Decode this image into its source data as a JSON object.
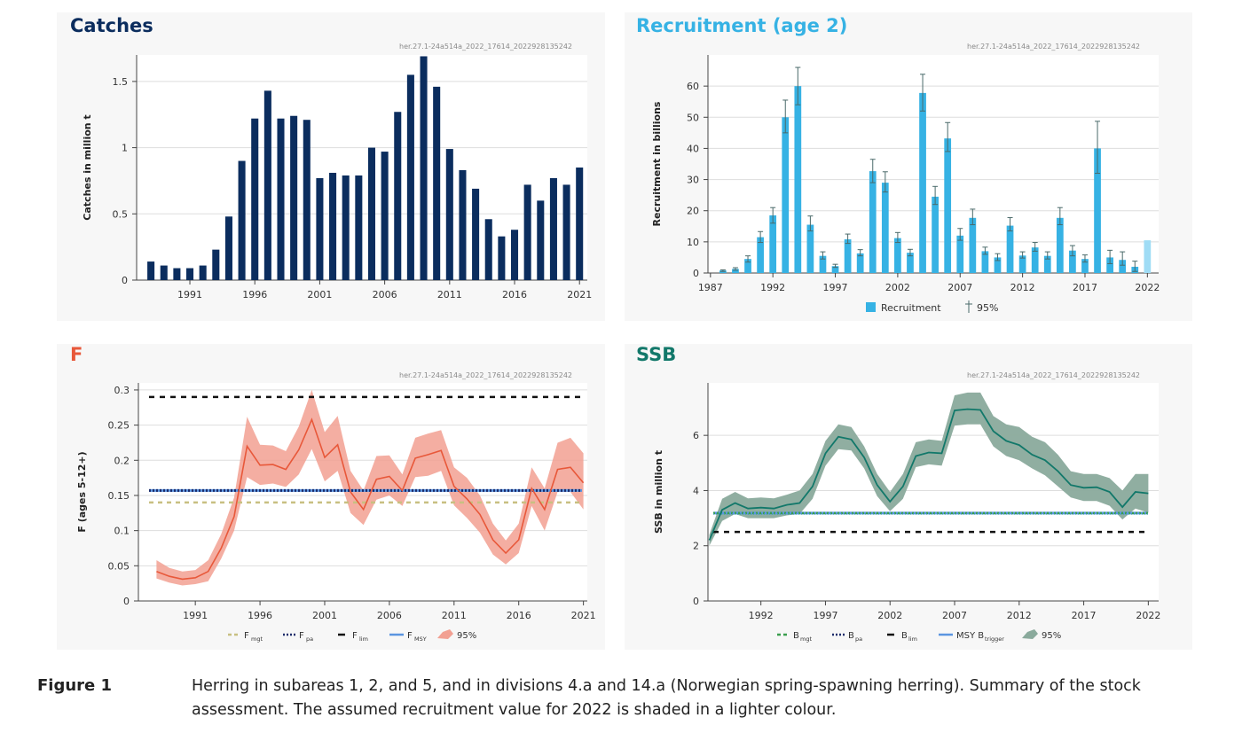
{
  "colors": {
    "catches": "#0b2d5e",
    "recruitment": "#36b2e4",
    "recruitment_assumed": "#9fdcf5",
    "f_line": "#e8583a",
    "f_band": "#f2a092",
    "ssb_line": "#12786a",
    "ssb_band": "#8aaa9c",
    "ref_mgt_f": "#c8c081",
    "ref_mgt_b": "#3a9e4e",
    "ref_pa": "#1d2d6b",
    "ref_lim": "#111111",
    "ref_msy": "#5b95e0",
    "catches_title": "#0b2d5e",
    "recruitment_title": "#36b2e4",
    "f_title": "#e8583a",
    "ssb_title": "#12786a"
  },
  "panels": {
    "catches": {
      "title": "Catches",
      "code": "her.27.1-24a514a_2022_17614_2022928135242",
      "ylabel": "Catches in million t"
    },
    "recruitment": {
      "title": "Recruitment (age 2)",
      "code": "her.27.1-24a514a_2022_17614_2022928135242",
      "ylabel": "Recruitment in billions",
      "legend_bar": "Recruitment",
      "legend_err": "95%"
    },
    "f": {
      "title": "F",
      "code": "her.27.1-24a514a_2022_17614_2022928135242",
      "ylabel": "F (ages 5-12+)",
      "legend": {
        "mgt": "F",
        "mgt_sub": "mgt",
        "pa": "F",
        "pa_sub": "pa",
        "lim": "F",
        "lim_sub": "lim",
        "msy": "F",
        "msy_sub": "MSY",
        "band": "95%"
      }
    },
    "ssb": {
      "title": "SSB",
      "code": "her.27.1-24a514a_2022_17614_2022928135242",
      "ylabel": "SSB in million t",
      "legend": {
        "mgt": "B",
        "mgt_sub": "mgt",
        "pa": "B",
        "pa_sub": "pa",
        "lim": "B",
        "lim_sub": "lim",
        "msy": "MSY B",
        "msy_sub": "trigger",
        "band": "95%"
      }
    }
  },
  "caption": {
    "label": "Figure 1",
    "text": "Herring in subareas 1, 2, and 5, and in divisions 4.a and 14.a (Norwegian spring-spawning herring). Summary of the stock assessment. The assumed recruitment value for 2022 is shaded in a lighter colour."
  },
  "chart_data": [
    {
      "id": "catches",
      "type": "bar",
      "title": "Catches",
      "ylabel": "Catches in million t",
      "x": [
        1988,
        1989,
        1990,
        1991,
        1992,
        1993,
        1994,
        1995,
        1996,
        1997,
        1998,
        1999,
        2000,
        2001,
        2002,
        2003,
        2004,
        2005,
        2006,
        2007,
        2008,
        2009,
        2010,
        2011,
        2012,
        2013,
        2014,
        2015,
        2016,
        2017,
        2018,
        2019,
        2020,
        2021
      ],
      "values": [
        0.14,
        0.11,
        0.09,
        0.09,
        0.11,
        0.23,
        0.48,
        0.9,
        1.22,
        1.43,
        1.22,
        1.24,
        1.21,
        0.77,
        0.81,
        0.79,
        0.79,
        1.0,
        0.97,
        1.27,
        1.55,
        1.69,
        1.46,
        0.99,
        0.83,
        0.69,
        0.46,
        0.33,
        0.38,
        0.72,
        0.6,
        0.77,
        0.72,
        0.85
      ],
      "xticks": [
        "1991",
        "1996",
        "2001",
        "2006",
        "2011",
        "2016",
        "2021"
      ],
      "yticks": [
        "0",
        "0.5",
        "1",
        "1.5"
      ],
      "ylim": [
        0,
        1.7
      ]
    },
    {
      "id": "recruitment",
      "type": "bar",
      "title": "Recruitment (age 2)",
      "ylabel": "Recruitment in billions",
      "x": [
        1988,
        1989,
        1990,
        1991,
        1992,
        1993,
        1994,
        1995,
        1996,
        1997,
        1998,
        1999,
        2000,
        2001,
        2002,
        2003,
        2004,
        2005,
        2006,
        2007,
        2008,
        2009,
        2010,
        2011,
        2012,
        2013,
        2014,
        2015,
        2016,
        2017,
        2018,
        2019,
        2020,
        2021,
        2022
      ],
      "values": [
        0.8,
        1.3,
        4.5,
        11.5,
        18.5,
        50,
        60,
        15.5,
        5.5,
        2.2,
        10.8,
        6.3,
        32.7,
        29,
        11.2,
        6.5,
        57.8,
        24.5,
        43.2,
        12,
        17.7,
        7,
        5,
        15.2,
        5.6,
        8.2,
        5.5,
        17.7,
        7.2,
        4.5,
        40,
        5,
        4.2,
        2,
        10.5
      ],
      "lower": [
        0.5,
        0.9,
        3.5,
        9.8,
        16,
        45,
        54,
        13.5,
        4.5,
        1.8,
        9.5,
        5.5,
        29,
        26,
        9.8,
        5.5,
        52,
        22,
        39,
        10.5,
        15.5,
        6,
        4,
        13.5,
        4.8,
        7,
        4.5,
        15.5,
        5.5,
        3.5,
        32,
        3,
        2.5,
        0.5,
        null
      ],
      "upper": [
        1.0,
        1.7,
        5.5,
        13.3,
        21,
        55.5,
        66,
        18.3,
        6.8,
        2.8,
        12.5,
        7.5,
        36.5,
        32.5,
        13,
        7.6,
        63.8,
        27.8,
        48.3,
        14.3,
        20.5,
        8.3,
        6.2,
        17.8,
        6.8,
        9.8,
        6.8,
        21,
        8.8,
        5.8,
        48.7,
        7.3,
        6.8,
        3.8,
        null
      ],
      "assumed_x": 2022,
      "xticks": [
        "1987",
        "1992",
        "1997",
        "2002",
        "2007",
        "2012",
        "2017",
        "2022"
      ],
      "yticks": [
        "0",
        "10",
        "20",
        "30",
        "40",
        "50",
        "60"
      ],
      "ylim": [
        0,
        70
      ],
      "legend": [
        "Recruitment",
        "95%"
      ]
    },
    {
      "id": "f",
      "type": "line",
      "title": "F",
      "ylabel": "F (ages 5-12+)",
      "x": [
        1988,
        1989,
        1990,
        1991,
        1992,
        1993,
        1994,
        1995,
        1996,
        1997,
        1998,
        1999,
        2000,
        2001,
        2002,
        2003,
        2004,
        2005,
        2006,
        2007,
        2008,
        2009,
        2010,
        2011,
        2012,
        2013,
        2014,
        2015,
        2016,
        2017,
        2018,
        2019,
        2020,
        2021
      ],
      "y": [
        0.042,
        0.035,
        0.031,
        0.033,
        0.042,
        0.075,
        0.12,
        0.22,
        0.193,
        0.194,
        0.187,
        0.215,
        0.258,
        0.204,
        0.222,
        0.155,
        0.13,
        0.173,
        0.177,
        0.157,
        0.203,
        0.208,
        0.214,
        0.163,
        0.145,
        0.123,
        0.087,
        0.068,
        0.087,
        0.16,
        0.13,
        0.187,
        0.19,
        0.168
      ],
      "lower": [
        0.032,
        0.026,
        0.022,
        0.024,
        0.028,
        0.06,
        0.1,
        0.176,
        0.165,
        0.167,
        0.162,
        0.18,
        0.216,
        0.17,
        0.185,
        0.125,
        0.108,
        0.144,
        0.15,
        0.135,
        0.176,
        0.178,
        0.185,
        0.136,
        0.118,
        0.097,
        0.066,
        0.052,
        0.068,
        0.135,
        0.1,
        0.155,
        0.155,
        0.13
      ],
      "upper": [
        0.058,
        0.047,
        0.042,
        0.044,
        0.058,
        0.095,
        0.147,
        0.262,
        0.222,
        0.221,
        0.213,
        0.248,
        0.3,
        0.24,
        0.263,
        0.185,
        0.157,
        0.206,
        0.207,
        0.18,
        0.232,
        0.238,
        0.243,
        0.19,
        0.175,
        0.15,
        0.11,
        0.086,
        0.11,
        0.19,
        0.16,
        0.225,
        0.232,
        0.21
      ],
      "ref_lines": {
        "F_mgt": 0.14,
        "F_pa": 0.157,
        "F_lim": 0.29,
        "F_MSY": 0.157
      },
      "xticks": [
        "1991",
        "1996",
        "2001",
        "2006",
        "2011",
        "2016",
        "2021"
      ],
      "yticks": [
        "0",
        "0.05",
        "0.1",
        "0.15",
        "0.2",
        "0.25",
        "0.3"
      ],
      "ylim": [
        0,
        0.31
      ]
    },
    {
      "id": "ssb",
      "type": "line",
      "title": "SSB",
      "ylabel": "SSB in million t",
      "x": [
        1988,
        1989,
        1990,
        1991,
        1992,
        1993,
        1994,
        1995,
        1996,
        1997,
        1998,
        1999,
        2000,
        2001,
        2002,
        2003,
        2004,
        2005,
        2006,
        2007,
        2008,
        2009,
        2010,
        2011,
        2012,
        2013,
        2014,
        2015,
        2016,
        2017,
        2018,
        2019,
        2020,
        2021,
        2022
      ],
      "y": [
        2.2,
        3.3,
        3.55,
        3.35,
        3.38,
        3.35,
        3.48,
        3.55,
        4.15,
        5.35,
        5.95,
        5.85,
        5.2,
        4.2,
        3.6,
        4.15,
        5.25,
        5.38,
        5.35,
        6.9,
        6.95,
        6.92,
        6.15,
        5.8,
        5.65,
        5.3,
        5.1,
        4.7,
        4.2,
        4.1,
        4.12,
        3.95,
        3.4,
        3.95,
        3.9
      ],
      "lower": [
        2.0,
        2.9,
        3.15,
        3.0,
        3.0,
        3.0,
        3.1,
        3.15,
        3.7,
        4.9,
        5.5,
        5.45,
        4.8,
        3.8,
        3.25,
        3.7,
        4.85,
        4.95,
        4.9,
        6.35,
        6.4,
        6.4,
        5.6,
        5.25,
        5.1,
        4.8,
        4.55,
        4.15,
        3.75,
        3.62,
        3.62,
        3.45,
        2.95,
        3.35,
        3.2
      ],
      "upper": [
        2.4,
        3.7,
        3.95,
        3.72,
        3.75,
        3.72,
        3.85,
        4.0,
        4.6,
        5.8,
        6.4,
        6.3,
        5.6,
        4.6,
        3.95,
        4.6,
        5.75,
        5.85,
        5.8,
        7.45,
        7.55,
        7.55,
        6.7,
        6.4,
        6.3,
        5.95,
        5.75,
        5.3,
        4.7,
        4.6,
        4.6,
        4.45,
        4.0,
        4.6,
        4.6
      ],
      "ref_lines": {
        "B_mgt": 3.184,
        "B_pa": 3.184,
        "B_lim": 2.5,
        "MSY_B_trigger": 3.184
      },
      "xticks": [
        "1992",
        "1997",
        "2002",
        "2007",
        "2012",
        "2017",
        "2022"
      ],
      "yticks": [
        "0",
        "2",
        "4",
        "6"
      ],
      "ylim": [
        0,
        7.9
      ]
    }
  ]
}
